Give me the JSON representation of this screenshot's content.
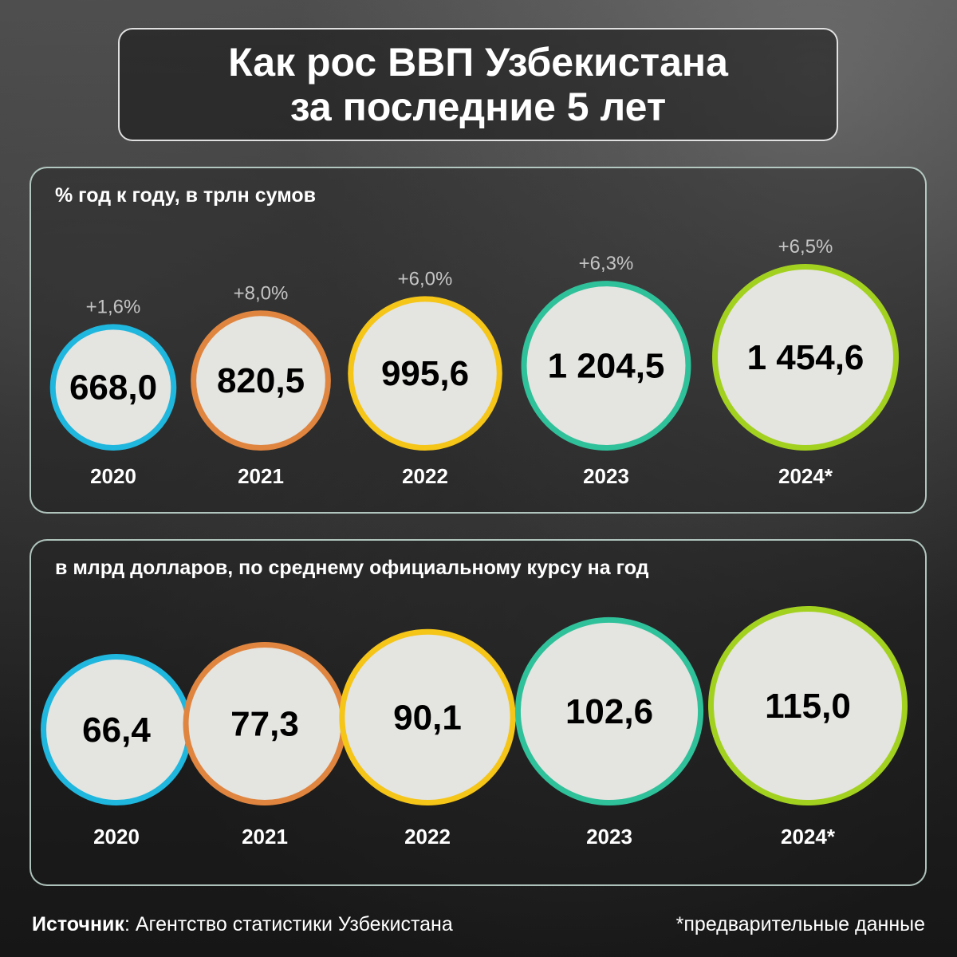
{
  "title": {
    "line1": "Как рос ВВП Узбекистана",
    "line2": "за последние 5 лет"
  },
  "colors": [
    "#1fb7de",
    "#e0853f",
    "#f5c517",
    "#2fc19a",
    "#a3d11f"
  ],
  "chart_data": [
    {
      "type": "bubble",
      "label": "% год к году, в трлн сумов",
      "categories": [
        "2020",
        "2021",
        "2022",
        "2023",
        "2024*"
      ],
      "values": [
        668.0,
        820.5,
        995.6,
        1204.5,
        1454.6
      ],
      "value_labels": [
        "668,0",
        "820,5",
        "995,6",
        "1 204,5",
        "1 454,6"
      ],
      "growth_labels": [
        "+1,6%",
        "+8,0%",
        "+6,0%",
        "+6,3%",
        "+6,5%"
      ]
    },
    {
      "type": "bubble",
      "label": "в млрд долларов, по среднему официальному курсу на год",
      "categories": [
        "2020",
        "2021",
        "2022",
        "2023",
        "2024*"
      ],
      "values": [
        66.4,
        77.3,
        90.1,
        102.6,
        115.0
      ],
      "value_labels": [
        "66,4",
        "77,3",
        "90,1",
        "102,6",
        "115,0"
      ]
    }
  ],
  "footer": {
    "source_label": "Источник",
    "source_text": ": Агентство статистики Узбекистана",
    "note": "*предварительные данные"
  }
}
